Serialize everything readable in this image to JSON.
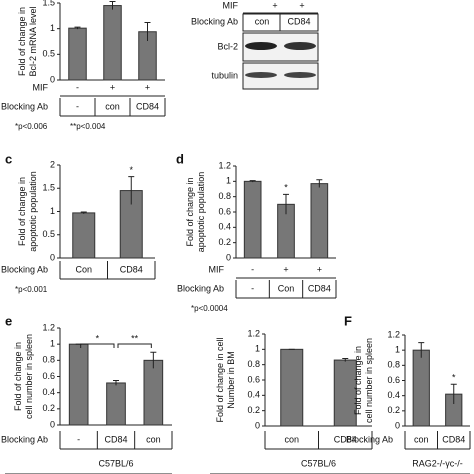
{
  "blot": {
    "rows": [
      {
        "label": "MIF",
        "cells": [
          "+",
          "+"
        ]
      },
      {
        "label": "Blocking Ab",
        "cells": [
          "con",
          "CD84"
        ]
      }
    ],
    "bands": [
      "Bcl-2",
      "tubulin"
    ]
  },
  "chart_data": [
    {
      "type": "bar",
      "ylabel": [
        "Fold of change in",
        "Bcl-2 mRNA level"
      ],
      "ylim": [
        0,
        1.5
      ],
      "yticks": [
        0,
        0.5,
        1,
        1.5
      ],
      "row_label": "Blocking Ab",
      "categories": [
        "-",
        "con",
        "CD84"
      ],
      "values": [
        1.01,
        1.45,
        0.94
      ],
      "errors": [
        0.02,
        0.08,
        0.18
      ],
      "extra_rows": [
        {
          "label": "MIF",
          "cells": [
            "-",
            "+",
            "+"
          ]
        }
      ],
      "notes": [
        "*p<0.006",
        "**p<0.004"
      ],
      "color": "#777777"
    },
    {
      "type": "bar",
      "panel": "c",
      "ylabel": [
        "Fold of change in",
        "apoptotic population"
      ],
      "ylim": [
        0,
        2
      ],
      "yticks": [
        0,
        0.5,
        1,
        1.5,
        2
      ],
      "row_label": "Blocking Ab",
      "categories": [
        "Con",
        "CD84"
      ],
      "values": [
        0.97,
        1.45
      ],
      "errors": [
        0.02,
        0.3
      ],
      "significance": [
        null,
        "*"
      ],
      "notes": [
        "*p<0.001"
      ],
      "color": "#777777"
    },
    {
      "type": "bar",
      "panel": "d",
      "ylabel": [
        "Fold of change in",
        "apoptotic population"
      ],
      "ylim": [
        0,
        1.2
      ],
      "yticks": [
        0,
        0.2,
        0.4,
        0.6,
        0.8,
        1,
        1.2
      ],
      "row_label": "Blocking Ab",
      "categories": [
        "-",
        "Con",
        "CD84"
      ],
      "values": [
        1.0,
        0.7,
        0.97
      ],
      "errors": [
        0.01,
        0.13,
        0.05
      ],
      "extra_rows": [
        {
          "label": "MIF",
          "cells": [
            "-",
            "+",
            "+"
          ]
        }
      ],
      "significance": [
        null,
        "*",
        null
      ],
      "notes": [
        "*p<0.0004"
      ],
      "color": "#777777"
    },
    {
      "type": "bar",
      "panel": "e",
      "ylabel": [
        "Fold of change in",
        "cell number in spleen"
      ],
      "ylim": [
        0,
        1.2
      ],
      "yticks": [
        0,
        0.2,
        0.4,
        0.6,
        0.8,
        1,
        1.2
      ],
      "row_label": "Blocking Ab",
      "categories": [
        "-",
        "CD84",
        "con"
      ],
      "values": [
        1.0,
        0.52,
        0.8
      ],
      "errors": [
        0.0,
        0.03,
        0.1
      ],
      "brackets": [
        {
          "between": [
            "-",
            "CD84"
          ],
          "text": "*"
        },
        {
          "between": [
            "CD84",
            "con"
          ],
          "text": "**"
        }
      ],
      "footer": "C57BL/6",
      "color": "#777777"
    },
    {
      "type": "bar",
      "ylabel": [
        "Fold of change in cell",
        "Number in BM"
      ],
      "ylim": [
        0,
        1.2
      ],
      "yticks": [
        0,
        0.2,
        0.4,
        0.6,
        0.8,
        1,
        1.2
      ],
      "categories": [
        "con",
        "CD84"
      ],
      "values": [
        1.0,
        0.86
      ],
      "errors": [
        0.0,
        0.02
      ],
      "footer": "C57BL/6",
      "color": "#777777"
    },
    {
      "type": "bar",
      "panel": "F",
      "ylabel": [
        "Fold of change in",
        "cell number in spleen"
      ],
      "ylim": [
        0,
        1.2
      ],
      "yticks": [
        0,
        0.2,
        0.4,
        0.6,
        0.8,
        1,
        1.2
      ],
      "row_label": "Blocking Ab",
      "categories": [
        "con",
        "CD84"
      ],
      "values": [
        1.0,
        0.42
      ],
      "errors": [
        0.1,
        0.13
      ],
      "significance": [
        null,
        "*"
      ],
      "footer": "RAG2-/-γc-/-",
      "color": "#777777"
    }
  ]
}
